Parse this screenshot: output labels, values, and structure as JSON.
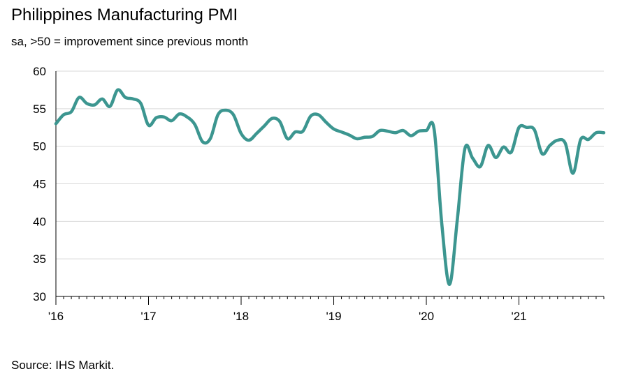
{
  "title": "Philippines Manufacturing PMI",
  "subtitle": "sa, >50 = improvement since previous month",
  "source": "Source: IHS Markit.",
  "line_color": "#3c9690",
  "grid_color": "#d9d9d9",
  "chart_data": {
    "type": "line",
    "title": "Philippines Manufacturing PMI",
    "subtitle": "sa, >50 = improvement since previous month",
    "xlabel": "",
    "ylabel": "",
    "ylim": [
      30,
      60
    ],
    "yticks": [
      30,
      35,
      40,
      45,
      50,
      55,
      60
    ],
    "xticks": [
      {
        "date": "2016-01",
        "label": "'16"
      },
      {
        "date": "2017-01",
        "label": "'17"
      },
      {
        "date": "2018-01",
        "label": "'18"
      },
      {
        "date": "2019-01",
        "label": "'19"
      },
      {
        "date": "2020-01",
        "label": "'20"
      },
      {
        "date": "2021-01",
        "label": "'21"
      }
    ],
    "grid": "horizontal",
    "legend": "none",
    "series": [
      {
        "x": [
          "2016-01",
          "2016-02",
          "2016-03",
          "2016-04",
          "2016-05",
          "2016-06",
          "2016-07",
          "2016-08",
          "2016-09",
          "2016-10",
          "2016-11",
          "2016-12",
          "2017-01",
          "2017-02",
          "2017-03",
          "2017-04",
          "2017-05",
          "2017-06",
          "2017-07",
          "2017-08",
          "2017-09",
          "2017-10",
          "2017-11",
          "2017-12",
          "2018-01",
          "2018-02",
          "2018-03",
          "2018-04",
          "2018-05",
          "2018-06",
          "2018-07",
          "2018-08",
          "2018-09",
          "2018-10",
          "2018-11",
          "2018-12",
          "2019-01",
          "2019-02",
          "2019-03",
          "2019-04",
          "2019-05",
          "2019-06",
          "2019-07",
          "2019-08",
          "2019-09",
          "2019-10",
          "2019-11",
          "2019-12",
          "2020-01",
          "2020-02",
          "2020-03",
          "2020-04",
          "2020-05",
          "2020-06",
          "2020-07",
          "2020-08",
          "2020-09",
          "2020-10",
          "2020-11",
          "2020-12",
          "2021-01",
          "2021-02",
          "2021-03",
          "2021-04",
          "2021-05",
          "2021-06",
          "2021-07",
          "2021-08",
          "2021-09",
          "2021-10",
          "2021-11",
          "2021-12"
        ],
        "values": [
          53.0,
          54.2,
          54.6,
          56.5,
          55.7,
          55.5,
          56.3,
          55.3,
          57.5,
          56.5,
          56.3,
          55.7,
          52.8,
          53.8,
          53.9,
          53.4,
          54.3,
          53.9,
          52.9,
          50.6,
          51.0,
          54.2,
          54.8,
          54.2,
          51.7,
          50.8,
          51.7,
          52.7,
          53.7,
          53.3,
          51.0,
          51.9,
          52.0,
          54.0,
          54.2,
          53.2,
          52.3,
          51.9,
          51.5,
          51.0,
          51.2,
          51.3,
          52.1,
          52.0,
          51.8,
          52.1,
          51.4,
          52.0,
          52.1,
          52.3,
          39.7,
          31.6,
          40.1,
          49.7,
          48.4,
          47.3,
          50.1,
          48.5,
          49.9,
          49.2,
          52.5,
          52.5,
          52.2,
          49.0,
          50.1,
          50.8,
          50.4,
          46.4,
          50.9,
          50.9,
          51.8,
          51.8
        ]
      }
    ]
  }
}
